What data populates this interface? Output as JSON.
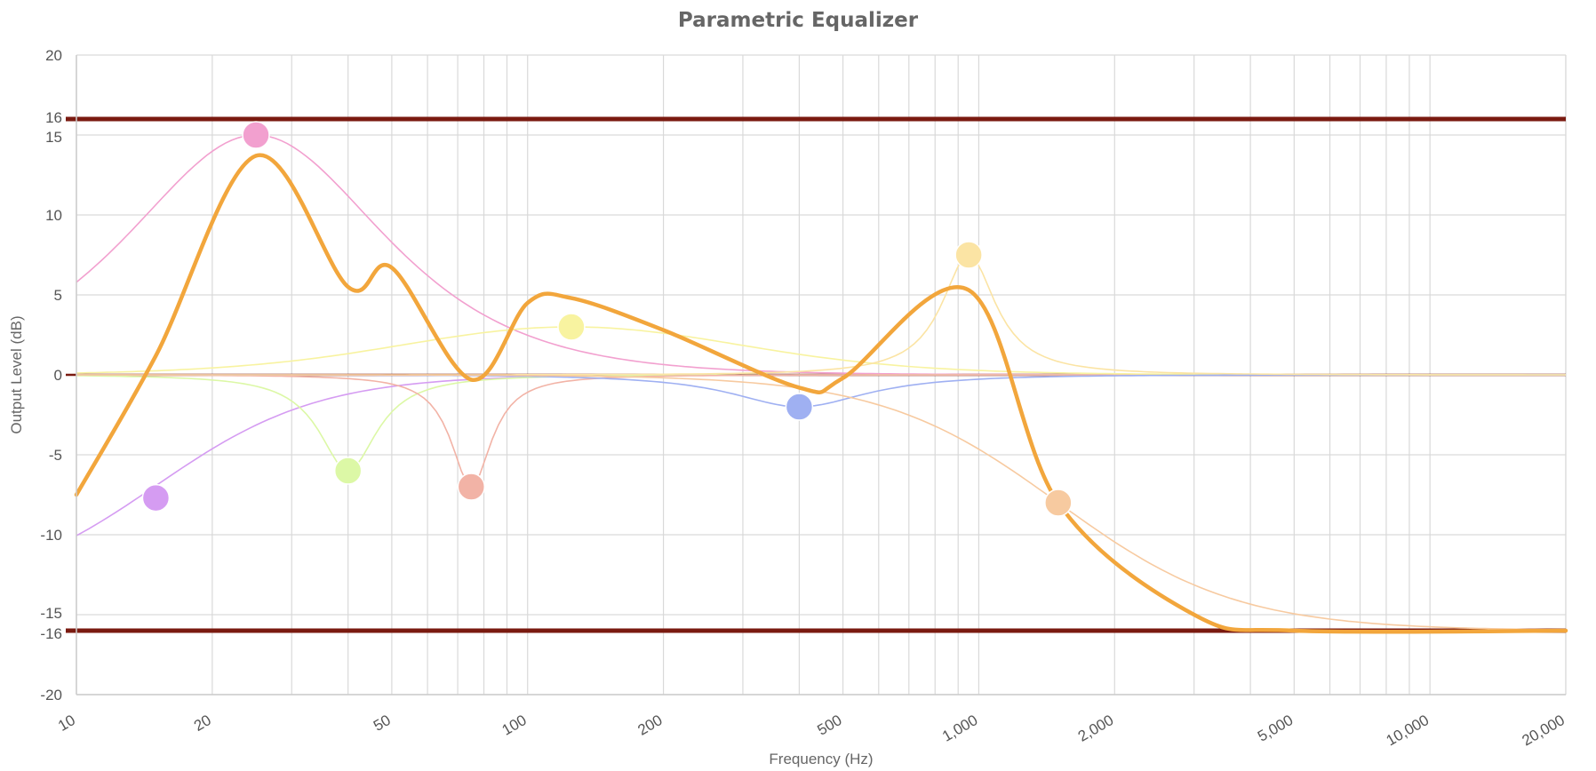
{
  "chart_data": {
    "type": "line",
    "title": "Parametric Equalizer",
    "xlabel": "Frequency (Hz)",
    "ylabel": "Output Level (dB)",
    "x_scale": "log",
    "xlim": [
      10,
      20000
    ],
    "ylim": [
      -20,
      20
    ],
    "grid": true,
    "legend": "none",
    "x_tick_labels": [
      {
        "value": 10,
        "label": "10"
      },
      {
        "value": 20,
        "label": "20"
      },
      {
        "value": 50,
        "label": "50"
      },
      {
        "value": 100,
        "label": "100"
      },
      {
        "value": 200,
        "label": "200"
      },
      {
        "value": 500,
        "label": "500"
      },
      {
        "value": 1000,
        "label": "1,000"
      },
      {
        "value": 2000,
        "label": "2,000"
      },
      {
        "value": 5000,
        "label": "5,000"
      },
      {
        "value": 10000,
        "label": "10,000"
      },
      {
        "value": 20000,
        "label": "20,000"
      }
    ],
    "y_tick_labels": [
      {
        "value": 20,
        "label": "20"
      },
      {
        "value": 16,
        "label": "16"
      },
      {
        "value": 15,
        "label": "15"
      },
      {
        "value": 10,
        "label": "10"
      },
      {
        "value": 5,
        "label": "5"
      },
      {
        "value": 0,
        "label": "0"
      },
      {
        "value": -5,
        "label": "-5"
      },
      {
        "value": -10,
        "label": "-10"
      },
      {
        "value": -15,
        "label": "-15"
      },
      {
        "value": -16,
        "label": "-16"
      },
      {
        "value": -20,
        "label": "-20"
      }
    ],
    "reference_lines": [
      16,
      0,
      -16
    ],
    "reference_color": "#7a1a10",
    "bands": [
      {
        "type": "highpass",
        "freq": 15,
        "gain": -7.7,
        "q": 1.0,
        "color": "#d59cf2"
      },
      {
        "type": "peak",
        "freq": 25,
        "gain": 15,
        "q": 0.6,
        "color": "#f2a0cf"
      },
      {
        "type": "peak",
        "freq": 40,
        "gain": -6,
        "q": 2.8,
        "color": "#dcf8a6"
      },
      {
        "type": "peak",
        "freq": 75,
        "gain": -7,
        "q": 4.0,
        "color": "#f2b3a6"
      },
      {
        "type": "peak",
        "freq": 125,
        "gain": 3,
        "q": 0.4,
        "color": "#f8f3a0"
      },
      {
        "type": "peak",
        "freq": 400,
        "gain": -2,
        "q": 1.2,
        "color": "#9fb0f2"
      },
      {
        "type": "peak",
        "freq": 950,
        "gain": 7.5,
        "q": 3.0,
        "color": "#fbe4a4"
      },
      {
        "type": "lowpass",
        "freq": 1500,
        "gain": -8,
        "q": 0.6,
        "color": "#f7caa0"
      }
    ],
    "total_response": {
      "color": "#f2a63c",
      "x": [
        10,
        15,
        25,
        40,
        50,
        75,
        100,
        125,
        200,
        400,
        500,
        950,
        1500,
        3000,
        5000,
        20000
      ],
      "y": [
        -7.5,
        1.2,
        13.7,
        5.5,
        6.7,
        -0.3,
        4.5,
        4.8,
        2.8,
        -0.8,
        -0.2,
        5.3,
        -8.0,
        -15.0,
        -16.0,
        -16.0
      ]
    }
  }
}
